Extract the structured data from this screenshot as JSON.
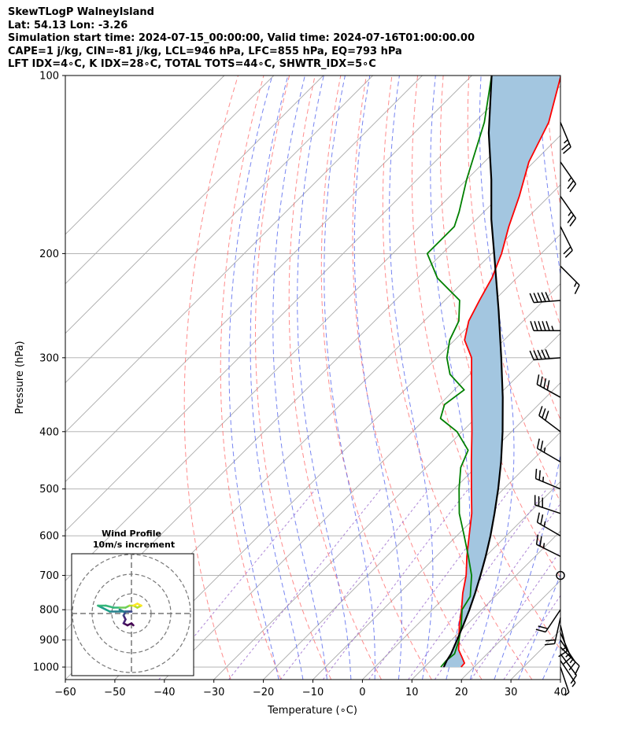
{
  "header": {
    "line1": "SkewTLogP WalneyIsland",
    "line2": "Lat: 54.13   Lon: -3.26",
    "line3": "Simulation start time: 2024-07-15_00:00:00, Valid time: 2024-07-16T01:00:00.00",
    "line4": "CAPE=1 j/kg, CIN=-81 j/kg, LCL=946 hPa, LFC=855 hPa, EQ=793 hPa",
    "line5": "LFT IDX=4∘C, K IDX=28∘C, TOTAL TOTS=44∘C, SHWTR_IDX=5∘C"
  },
  "colors": {
    "temperature": "#ff0000",
    "dewpoint": "#008000",
    "parcel": "#000000",
    "cape_fill": "#a3c6e0",
    "isotherm": "#aaaaaa",
    "dry_adiabat": "#ff6666",
    "moist_adiabat": "#5566ee",
    "mixing_ratio": "#9966cc"
  },
  "chart_data": {
    "type": "line",
    "title": "",
    "xlabel": "Temperature (∘C)",
    "ylabel": "Pressure (hPa)",
    "xlim": [
      -60,
      40
    ],
    "ylim": [
      1050,
      100
    ],
    "y_scale": "log",
    "skew": true,
    "grid": true,
    "x_ticks": [
      -60,
      -50,
      -40,
      -30,
      -20,
      -10,
      0,
      10,
      20,
      30,
      40
    ],
    "x_tick_labels": [
      "−60",
      "−50",
      "−40",
      "−30",
      "−20",
      "−10",
      "0",
      "10",
      "20",
      "30",
      "40"
    ],
    "y_ticks": [
      1000,
      900,
      800,
      700,
      600,
      500,
      400,
      300,
      200,
      100
    ],
    "y_tick_labels": [
      "1000",
      "900",
      "800",
      "700",
      "600",
      "500",
      "400",
      "300",
      "200",
      "100"
    ],
    "series": [
      {
        "key": "temperature",
        "color": "#ff0000",
        "points": [
          [
            1000,
            17.4
          ],
          [
            985,
            17.3
          ],
          [
            960,
            15.4
          ],
          [
            935,
            13.4
          ],
          [
            900,
            11.5
          ],
          [
            850,
            8.6
          ],
          [
            800,
            5.9
          ],
          [
            750,
            2.8
          ],
          [
            700,
            -0.1
          ],
          [
            650,
            -3.8
          ],
          [
            600,
            -7.5
          ],
          [
            550,
            -11.5
          ],
          [
            500,
            -16.5
          ],
          [
            450,
            -22
          ],
          [
            400,
            -28
          ],
          [
            350,
            -35
          ],
          [
            300,
            -43
          ],
          [
            280,
            -48
          ],
          [
            260,
            -51
          ],
          [
            240,
            -53
          ],
          [
            220,
            -55
          ],
          [
            200,
            -58
          ],
          [
            180,
            -62
          ],
          [
            160,
            -66
          ],
          [
            140,
            -71
          ],
          [
            120,
            -75
          ],
          [
            100,
            -82
          ]
        ]
      },
      {
        "key": "dewpoint",
        "color": "#008000",
        "points": [
          [
            1000,
            13.3
          ],
          [
            975,
            13.1
          ],
          [
            950,
            13.4
          ],
          [
            900,
            11.5
          ],
          [
            850,
            9
          ],
          [
            800,
            6
          ],
          [
            760,
            5
          ],
          [
            700,
            1
          ],
          [
            650,
            -3.5
          ],
          [
            600,
            -8.5
          ],
          [
            550,
            -14
          ],
          [
            500,
            -19
          ],
          [
            460,
            -23
          ],
          [
            430,
            -25
          ],
          [
            400,
            -31
          ],
          [
            380,
            -37
          ],
          [
            360,
            -39
          ],
          [
            340,
            -38
          ],
          [
            320,
            -44
          ],
          [
            300,
            -48
          ],
          [
            280,
            -51
          ],
          [
            260,
            -53
          ],
          [
            240,
            -57
          ],
          [
            220,
            -66
          ],
          [
            200,
            -73
          ],
          [
            190,
            -73
          ],
          [
            180,
            -73
          ],
          [
            170,
            -75
          ],
          [
            150,
            -80
          ],
          [
            120,
            -88
          ],
          [
            100,
            -96
          ]
        ]
      },
      {
        "key": "parcel",
        "color": "#000000",
        "points": [
          [
            1000,
            13.9
          ],
          [
            975,
            13.2
          ],
          [
            950,
            12.7
          ],
          [
            900,
            11.1
          ],
          [
            850,
            9.4
          ],
          [
            800,
            7.5
          ],
          [
            750,
            5.3
          ],
          [
            700,
            2.8
          ],
          [
            650,
            0
          ],
          [
            600,
            -3.2
          ],
          [
            550,
            -6.9
          ],
          [
            500,
            -11.1
          ],
          [
            450,
            -16
          ],
          [
            400,
            -21.8
          ],
          [
            350,
            -28.7
          ],
          [
            300,
            -37
          ],
          [
            250,
            -47
          ],
          [
            200,
            -59.5
          ],
          [
            175,
            -67
          ],
          [
            150,
            -75
          ],
          [
            125,
            -85
          ],
          [
            100,
            -96
          ]
        ]
      }
    ],
    "shaded_between": [
      "temperature",
      "parcel"
    ],
    "wind_barbs": [
      {
        "p": 1000,
        "u": -1,
        "v": 3
      },
      {
        "p": 975,
        "u": -2,
        "v": 3
      },
      {
        "p": 950,
        "u": -3,
        "v": 4
      },
      {
        "p": 925,
        "u": -4,
        "v": 4
      },
      {
        "p": 900,
        "u": -4,
        "v": 6
      },
      {
        "p": 875,
        "u": -3,
        "v": 7
      },
      {
        "p": 850,
        "u": -2,
        "v": 8
      },
      {
        "p": 825,
        "u": 2,
        "v": 9
      },
      {
        "p": 800,
        "u": 6,
        "v": 9
      },
      {
        "p": 700,
        "u": 0,
        "v": 0
      },
      {
        "p": 650,
        "u": 12,
        "v": -6
      },
      {
        "p": 600,
        "u": 12,
        "v": -7
      },
      {
        "p": 550,
        "u": 15,
        "v": -5
      },
      {
        "p": 500,
        "u": 12,
        "v": -5
      },
      {
        "p": 450,
        "u": 12,
        "v": -7
      },
      {
        "p": 400,
        "u": 12,
        "v": -9
      },
      {
        "p": 350,
        "u": 18,
        "v": -10
      },
      {
        "p": 300,
        "u": 25,
        "v": 2
      },
      {
        "p": 270,
        "u": 28,
        "v": 0
      },
      {
        "p": 240,
        "u": 26,
        "v": 2
      },
      {
        "p": 210,
        "u": -5,
        "v": 5
      },
      {
        "p": 180,
        "u": -5,
        "v": 10
      },
      {
        "p": 160,
        "u": -7,
        "v": 10
      },
      {
        "p": 140,
        "u": -7,
        "v": 10
      },
      {
        "p": 120,
        "u": -5,
        "v": 12
      }
    ],
    "hodograph": {
      "title": "Wind Profile",
      "subtitle": "10m/s increment",
      "rings": [
        10,
        20,
        30
      ],
      "points": [
        [
          1,
          -6
        ],
        [
          0,
          -5
        ],
        [
          -2,
          -6
        ],
        [
          -4,
          -5
        ],
        [
          -3,
          -3
        ],
        [
          -4,
          -1
        ],
        [
          -3,
          1
        ],
        [
          0,
          1
        ],
        [
          -2,
          1
        ],
        [
          -4,
          1
        ],
        [
          -6,
          2
        ],
        [
          -4,
          1
        ],
        [
          -8,
          1
        ],
        [
          -11,
          1
        ],
        [
          -13,
          2
        ],
        [
          -17,
          4
        ],
        [
          -13,
          4
        ],
        [
          -9,
          3
        ],
        [
          -6,
          3
        ],
        [
          -3,
          3
        ],
        [
          -1,
          4
        ],
        [
          1,
          4
        ],
        [
          3,
          3
        ],
        [
          5,
          4
        ],
        [
          3,
          5
        ],
        [
          1,
          4
        ]
      ]
    }
  }
}
